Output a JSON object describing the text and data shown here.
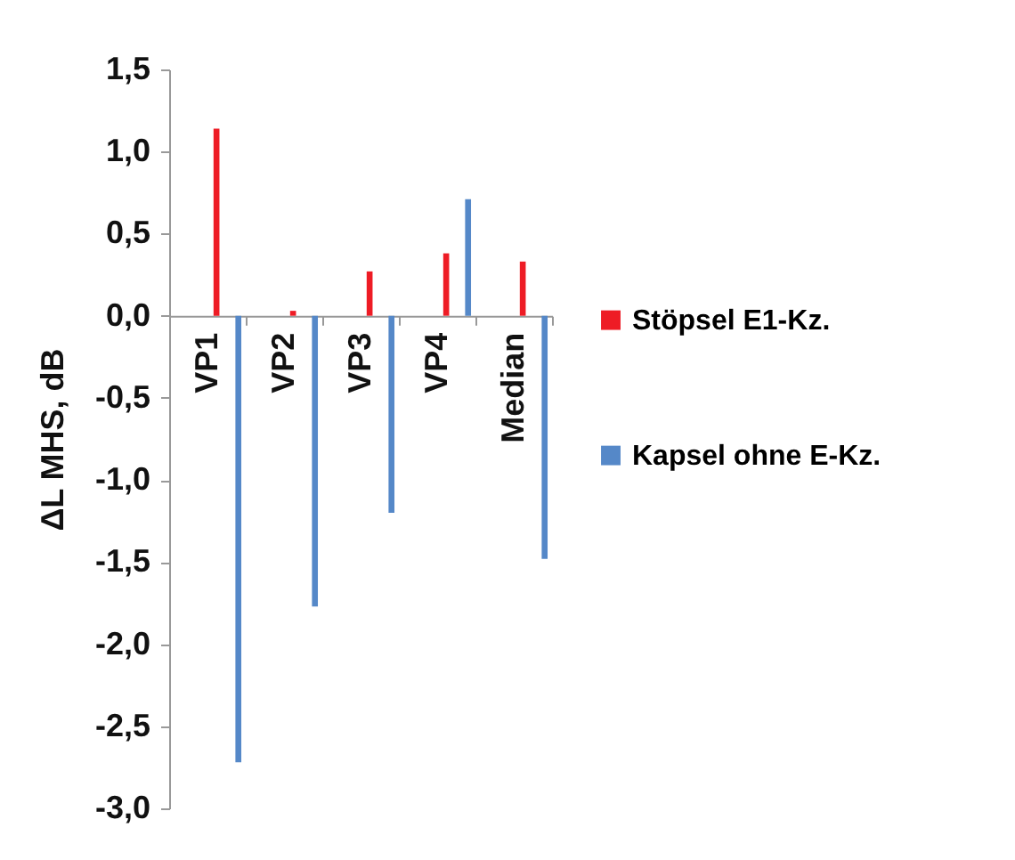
{
  "chart_data": {
    "type": "bar",
    "ylabel": "ΔL MHS, dB",
    "categories": [
      "VP1",
      "VP2",
      "VP3",
      "VP4",
      "Median"
    ],
    "series": [
      {
        "name": "Stöpsel E1-Kz.",
        "color": "#ee1c25",
        "values": [
          1.14,
          0.03,
          0.27,
          0.38,
          0.33
        ]
      },
      {
        "name": "Kapsel ohne E-Kz.",
        "color": "#5588c8",
        "values": [
          -2.72,
          -1.77,
          -1.2,
          0.71,
          -1.48
        ]
      }
    ],
    "ylim": [
      -3,
      1.5
    ],
    "yticks": [
      {
        "value": -3,
        "label": "-3,0"
      },
      {
        "value": -2.5,
        "label": "-2,5"
      },
      {
        "value": -2,
        "label": "-2,0"
      },
      {
        "value": -1.5,
        "label": "-1,5"
      },
      {
        "value": -1,
        "label": "-1,0"
      },
      {
        "value": -0.5,
        "label": "-0,5"
      },
      {
        "value": 0,
        "label": "0,0"
      },
      {
        "value": 0.5,
        "label": "0,5"
      },
      {
        "value": 1,
        "label": "1,0"
      },
      {
        "value": 1.5,
        "label": "1,5"
      }
    ],
    "legend": "right",
    "grid": false
  }
}
